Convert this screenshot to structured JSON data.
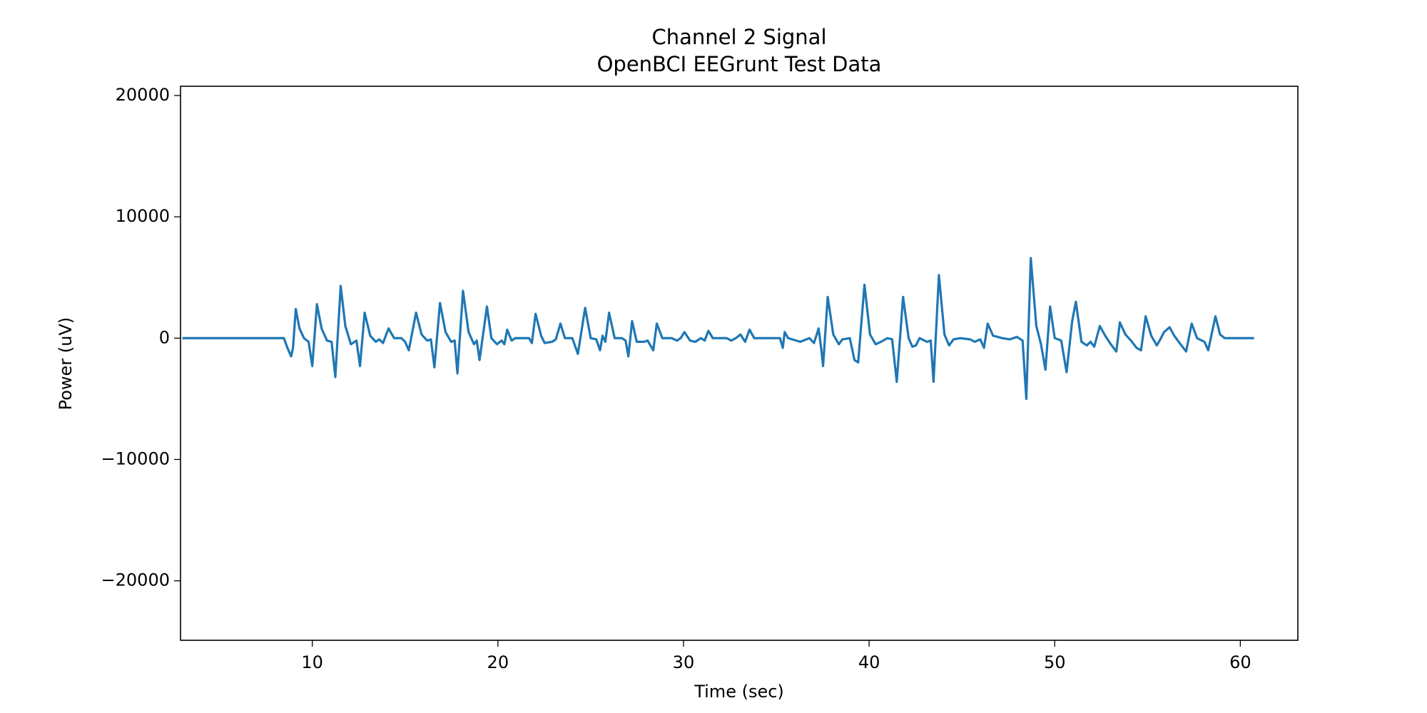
{
  "chart_data": {
    "type": "line",
    "title": "Channel 2 Signal",
    "subtitle": "OpenBCI EEGrunt Test Data",
    "xlabel": "Time (sec)",
    "ylabel": "Power (uV)",
    "color": "#1f77b4",
    "xlim": [
      2.9,
      63.1
    ],
    "ylim": [
      -24900,
      20760
    ],
    "xticks": [
      10,
      20,
      30,
      40,
      50,
      60
    ],
    "yticks": [
      {
        "value": -20000,
        "label": "−20000"
      },
      {
        "value": -10000,
        "label": "−10000"
      },
      0,
      10000,
      20000
    ],
    "x": [
      3.0,
      8.47,
      8.66,
      8.86,
      8.96,
      9.11,
      9.31,
      9.55,
      9.8,
      10.0,
      10.25,
      10.5,
      10.79,
      11.04,
      11.24,
      11.53,
      11.78,
      12.08,
      12.38,
      12.57,
      12.82,
      13.12,
      13.42,
      13.61,
      13.81,
      14.11,
      14.41,
      14.8,
      15.0,
      15.2,
      15.59,
      15.89,
      16.19,
      16.39,
      16.58,
      16.88,
      17.18,
      17.48,
      17.67,
      17.82,
      18.12,
      18.42,
      18.71,
      18.86,
      19.01,
      19.41,
      19.65,
      19.95,
      20.2,
      20.35,
      20.5,
      20.74,
      20.94,
      21.68,
      21.83,
      22.03,
      22.33,
      22.52,
      22.92,
      23.12,
      23.37,
      23.61,
      24.01,
      24.31,
      24.7,
      25.0,
      25.3,
      25.5,
      25.64,
      25.79,
      25.99,
      26.29,
      26.68,
      26.88,
      27.03,
      27.23,
      27.48,
      27.87,
      28.07,
      28.37,
      28.56,
      28.86,
      29.36,
      29.65,
      29.85,
      30.05,
      30.35,
      30.64,
      30.94,
      31.14,
      31.34,
      31.58,
      32.33,
      32.57,
      32.82,
      33.07,
      33.32,
      33.56,
      33.81,
      34.8,
      35.2,
      35.35,
      35.45,
      35.64,
      36.29,
      36.78,
      37.03,
      37.28,
      37.43,
      37.52,
      37.77,
      38.07,
      38.37,
      38.56,
      38.96,
      39.21,
      39.41,
      39.75,
      40.05,
      40.35,
      40.64,
      40.99,
      41.24,
      41.49,
      41.83,
      42.13,
      42.33,
      42.52,
      42.72,
      43.12,
      43.32,
      43.47,
      43.76,
      44.06,
      44.31,
      44.55,
      44.9,
      45.45,
      45.69,
      45.99,
      46.19,
      46.39,
      46.68,
      47.18,
      47.57,
      47.97,
      48.27,
      48.47,
      48.71,
      49.01,
      49.26,
      49.5,
      49.75,
      50.0,
      50.35,
      50.64,
      50.94,
      51.14,
      51.44,
      51.73,
      51.93,
      52.13,
      52.43,
      52.72,
      53.02,
      53.32,
      53.51,
      53.81,
      54.11,
      54.41,
      54.65,
      54.9,
      55.2,
      55.5,
      55.69,
      55.89,
      56.19,
      56.44,
      56.78,
      57.08,
      57.38,
      57.67,
      58.07,
      58.27,
      58.66,
      58.91,
      59.16,
      60.74
    ],
    "values": [
      0,
      0,
      -800,
      -1500,
      -800,
      2400,
      800,
      0,
      -300,
      -2300,
      2800,
      800,
      -200,
      -300,
      -3200,
      4300,
      1000,
      -500,
      -200,
      -2300,
      2100,
      200,
      -300,
      -100,
      -400,
      800,
      0,
      0,
      -300,
      -1000,
      2100,
      300,
      -200,
      -100,
      -2400,
      2900,
      500,
      -300,
      -200,
      -2900,
      3900,
      500,
      -500,
      -200,
      -1800,
      2600,
      0,
      -500,
      -200,
      -500,
      700,
      -200,
      0,
      0,
      -400,
      2000,
      200,
      -400,
      -300,
      -100,
      1200,
      0,
      0,
      -1300,
      2500,
      0,
      -100,
      -1000,
      200,
      -300,
      2100,
      0,
      0,
      -200,
      -1500,
      1400,
      -300,
      -300,
      -200,
      -1000,
      1200,
      0,
      0,
      -200,
      0,
      500,
      -200,
      -300,
      0,
      -200,
      600,
      0,
      0,
      -200,
      0,
      300,
      -300,
      700,
      0,
      0,
      0,
      -800,
      500,
      0,
      -300,
      0,
      -400,
      800,
      -1000,
      -2300,
      3400,
      300,
      -500,
      -100,
      0,
      -1800,
      -2000,
      4400,
      300,
      -500,
      -300,
      0,
      -100,
      -3600,
      3400,
      0,
      -700,
      -600,
      0,
      -300,
      -200,
      -3600,
      5200,
      300,
      -600,
      -100,
      0,
      -100,
      -300,
      -100,
      -800,
      1200,
      200,
      0,
      -100,
      100,
      -200,
      -5000,
      6600,
      1000,
      -500,
      -2600,
      2600,
      0,
      -200,
      -2800,
      1400,
      3000,
      -300,
      -600,
      -300,
      -700,
      1000,
      200,
      -500,
      -1100,
      1300,
      300,
      -200,
      -800,
      -1000,
      1800,
      200,
      -600,
      -100,
      500,
      900,
      200,
      -500,
      -1100,
      1200,
      0,
      -300,
      -1000,
      1800,
      300,
      0,
      0
    ]
  }
}
